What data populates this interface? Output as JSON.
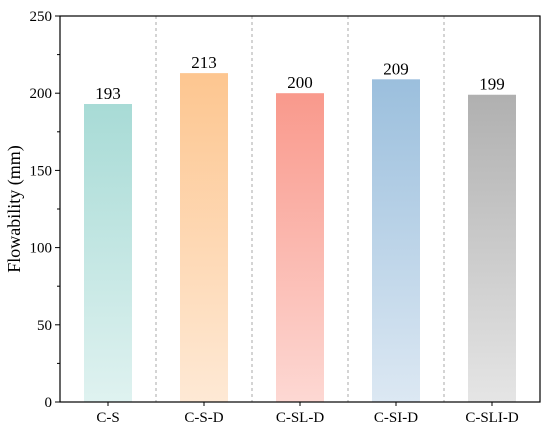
{
  "chart_data": {
    "type": "bar",
    "categories": [
      "C-S",
      "C-S-D",
      "C-SL-D",
      "C-SI-D",
      "C-SLI-D"
    ],
    "values": [
      193,
      213,
      200,
      209,
      199
    ],
    "data_labels": [
      "193",
      "213",
      "200",
      "209",
      "199"
    ],
    "title": "",
    "xlabel": "",
    "ylabel": "Flowability (mm)",
    "ylim": [
      0,
      250
    ],
    "yticks": [
      0,
      50,
      100,
      150,
      200,
      250
    ],
    "grid": false,
    "category_separators": "dashed vertical",
    "bar_colors": [
      "#a8dbd6",
      "#fdc690",
      "#f9998c",
      "#9bbfdd",
      "#b0b0b0"
    ],
    "bar_colors_light": [
      "#dff2f0",
      "#fee9d5",
      "#fdd8d3",
      "#dce8f3",
      "#e5e5e5"
    ]
  }
}
